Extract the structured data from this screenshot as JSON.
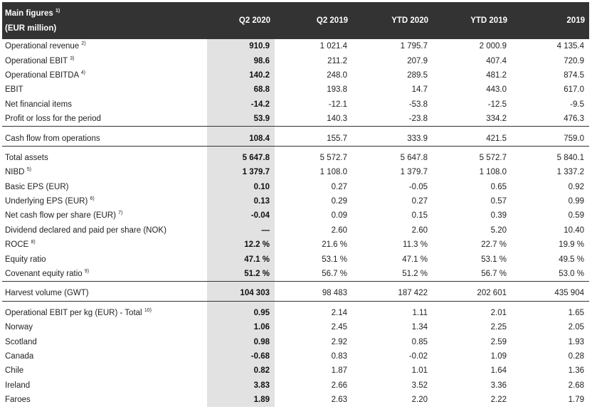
{
  "header": {
    "title": "Main figures",
    "title_note": "1)",
    "subtitle": "(EUR million)",
    "columns": [
      "Q2 2020",
      "Q2 2019",
      "YTD 2020",
      "YTD 2019",
      "2019"
    ]
  },
  "sections": [
    {
      "rows": [
        {
          "label": "Operational revenue",
          "note": "2)",
          "values": [
            "910.9",
            "1 021.4",
            "1 795.7",
            "2 000.9",
            "4 135.4"
          ]
        },
        {
          "label": "Operational EBIT",
          "note": "3)",
          "values": [
            "98.6",
            "211.2",
            "207.9",
            "407.4",
            "720.9"
          ]
        },
        {
          "label": "Operational EBITDA",
          "note": "4)",
          "values": [
            "140.2",
            "248.0",
            "289.5",
            "481.2",
            "874.5"
          ]
        },
        {
          "label": "EBIT",
          "note": "",
          "values": [
            "68.8",
            "193.8",
            "14.7",
            "443.0",
            "617.0"
          ]
        },
        {
          "label": "Net financial items",
          "note": "",
          "values": [
            "-14.2",
            "-12.1",
            "-53.8",
            "-12.5",
            "-9.5"
          ]
        },
        {
          "label": "Profit or loss for the period",
          "note": "",
          "values": [
            "53.9",
            "140.3",
            "-23.8",
            "334.2",
            "476.3"
          ]
        }
      ]
    },
    {
      "rows": [
        {
          "label": "Cash flow from operations",
          "note": "",
          "values": [
            "108.4",
            "155.7",
            "333.9",
            "421.5",
            "759.0"
          ]
        }
      ]
    },
    {
      "rows": [
        {
          "label": "Total assets",
          "note": "",
          "values": [
            "5 647.8",
            "5 572.7",
            "5 647.8",
            "5 572.7",
            "5 840.1"
          ]
        },
        {
          "label": "NIBD",
          "note": "5)",
          "values": [
            "1 379.7",
            "1 108.0",
            "1 379.7",
            "1 108.0",
            "1 337.2"
          ]
        },
        {
          "label": "Basic EPS (EUR)",
          "note": "",
          "values": [
            "0.10",
            "0.27",
            "-0.05",
            "0.65",
            "0.92"
          ]
        },
        {
          "label": "Underlying EPS (EUR)",
          "note": "6)",
          "values": [
            "0.13",
            "0.29",
            "0.27",
            "0.57",
            "0.99"
          ]
        },
        {
          "label": "Net cash flow per share (EUR)",
          "note": "7)",
          "values": [
            "-0.04",
            "0.09",
            "0.15",
            "0.39",
            "0.59"
          ]
        },
        {
          "label": "Dividend declared and paid per share (NOK)",
          "note": "",
          "values": [
            "—",
            "2.60",
            "2.60",
            "5.20",
            "10.40"
          ]
        },
        {
          "label": "ROCE",
          "note": "8)",
          "values": [
            "12.2 %",
            "21.6 %",
            "11.3 %",
            "22.7 %",
            "19.9 %"
          ]
        },
        {
          "label": "Equity ratio",
          "note": "",
          "values": [
            "47.1 %",
            "53.1 %",
            "47.1 %",
            "53.1 %",
            "49.5 %"
          ]
        },
        {
          "label": "Covenant equity ratio",
          "note": "9)",
          "values": [
            "51.2 %",
            "56.7 %",
            "51.2 %",
            "56.7 %",
            "53.0 %"
          ]
        }
      ]
    },
    {
      "rows": [
        {
          "label": "Harvest volume (GWT)",
          "note": "",
          "values": [
            "104 303",
            "98 483",
            "187 422",
            "202 601",
            "435 904"
          ]
        }
      ]
    },
    {
      "rows": [
        {
          "label": "Operational EBIT per kg (EUR) - Total",
          "note": "10)",
          "values": [
            "0.95",
            "2.14",
            "1.11",
            "2.01",
            "1.65"
          ]
        },
        {
          "label": "Norway",
          "note": "",
          "values": [
            "1.06",
            "2.45",
            "1.34",
            "2.25",
            "2.05"
          ]
        },
        {
          "label": "Scotland",
          "note": "",
          "values": [
            "0.98",
            "2.92",
            "0.85",
            "2.59",
            "1.93"
          ]
        },
        {
          "label": "Canada",
          "note": "",
          "values": [
            "-0.68",
            "0.83",
            "-0.02",
            "1.09",
            "0.28"
          ]
        },
        {
          "label": "Chile",
          "note": "",
          "values": [
            "0.82",
            "1.87",
            "1.01",
            "1.64",
            "1.36"
          ]
        },
        {
          "label": "Ireland",
          "note": "",
          "values": [
            "3.83",
            "2.66",
            "3.52",
            "3.36",
            "2.68"
          ]
        },
        {
          "label": "Faroes",
          "note": "",
          "values": [
            "1.89",
            "2.63",
            "2.20",
            "2.22",
            "1.79"
          ]
        }
      ]
    }
  ]
}
